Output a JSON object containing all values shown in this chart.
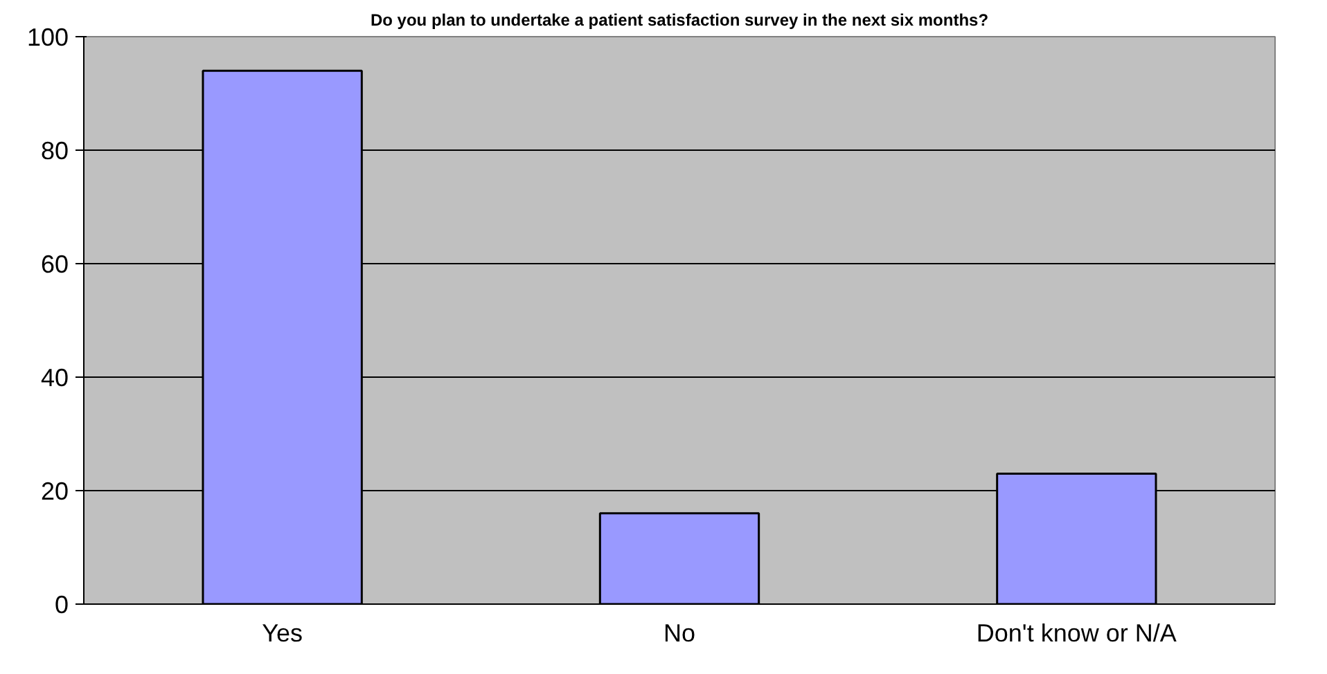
{
  "chart_data": {
    "type": "bar",
    "title": "Do you plan to undertake a patient satisfaction survey in the next six months?",
    "categories": [
      "Yes",
      "No",
      "Don't know or N/A"
    ],
    "values": [
      94,
      16,
      23
    ],
    "color": "#9999ff",
    "ylim": [
      0,
      100
    ],
    "yticks": [
      0,
      20,
      40,
      60,
      80,
      100
    ],
    "grid": "y"
  }
}
